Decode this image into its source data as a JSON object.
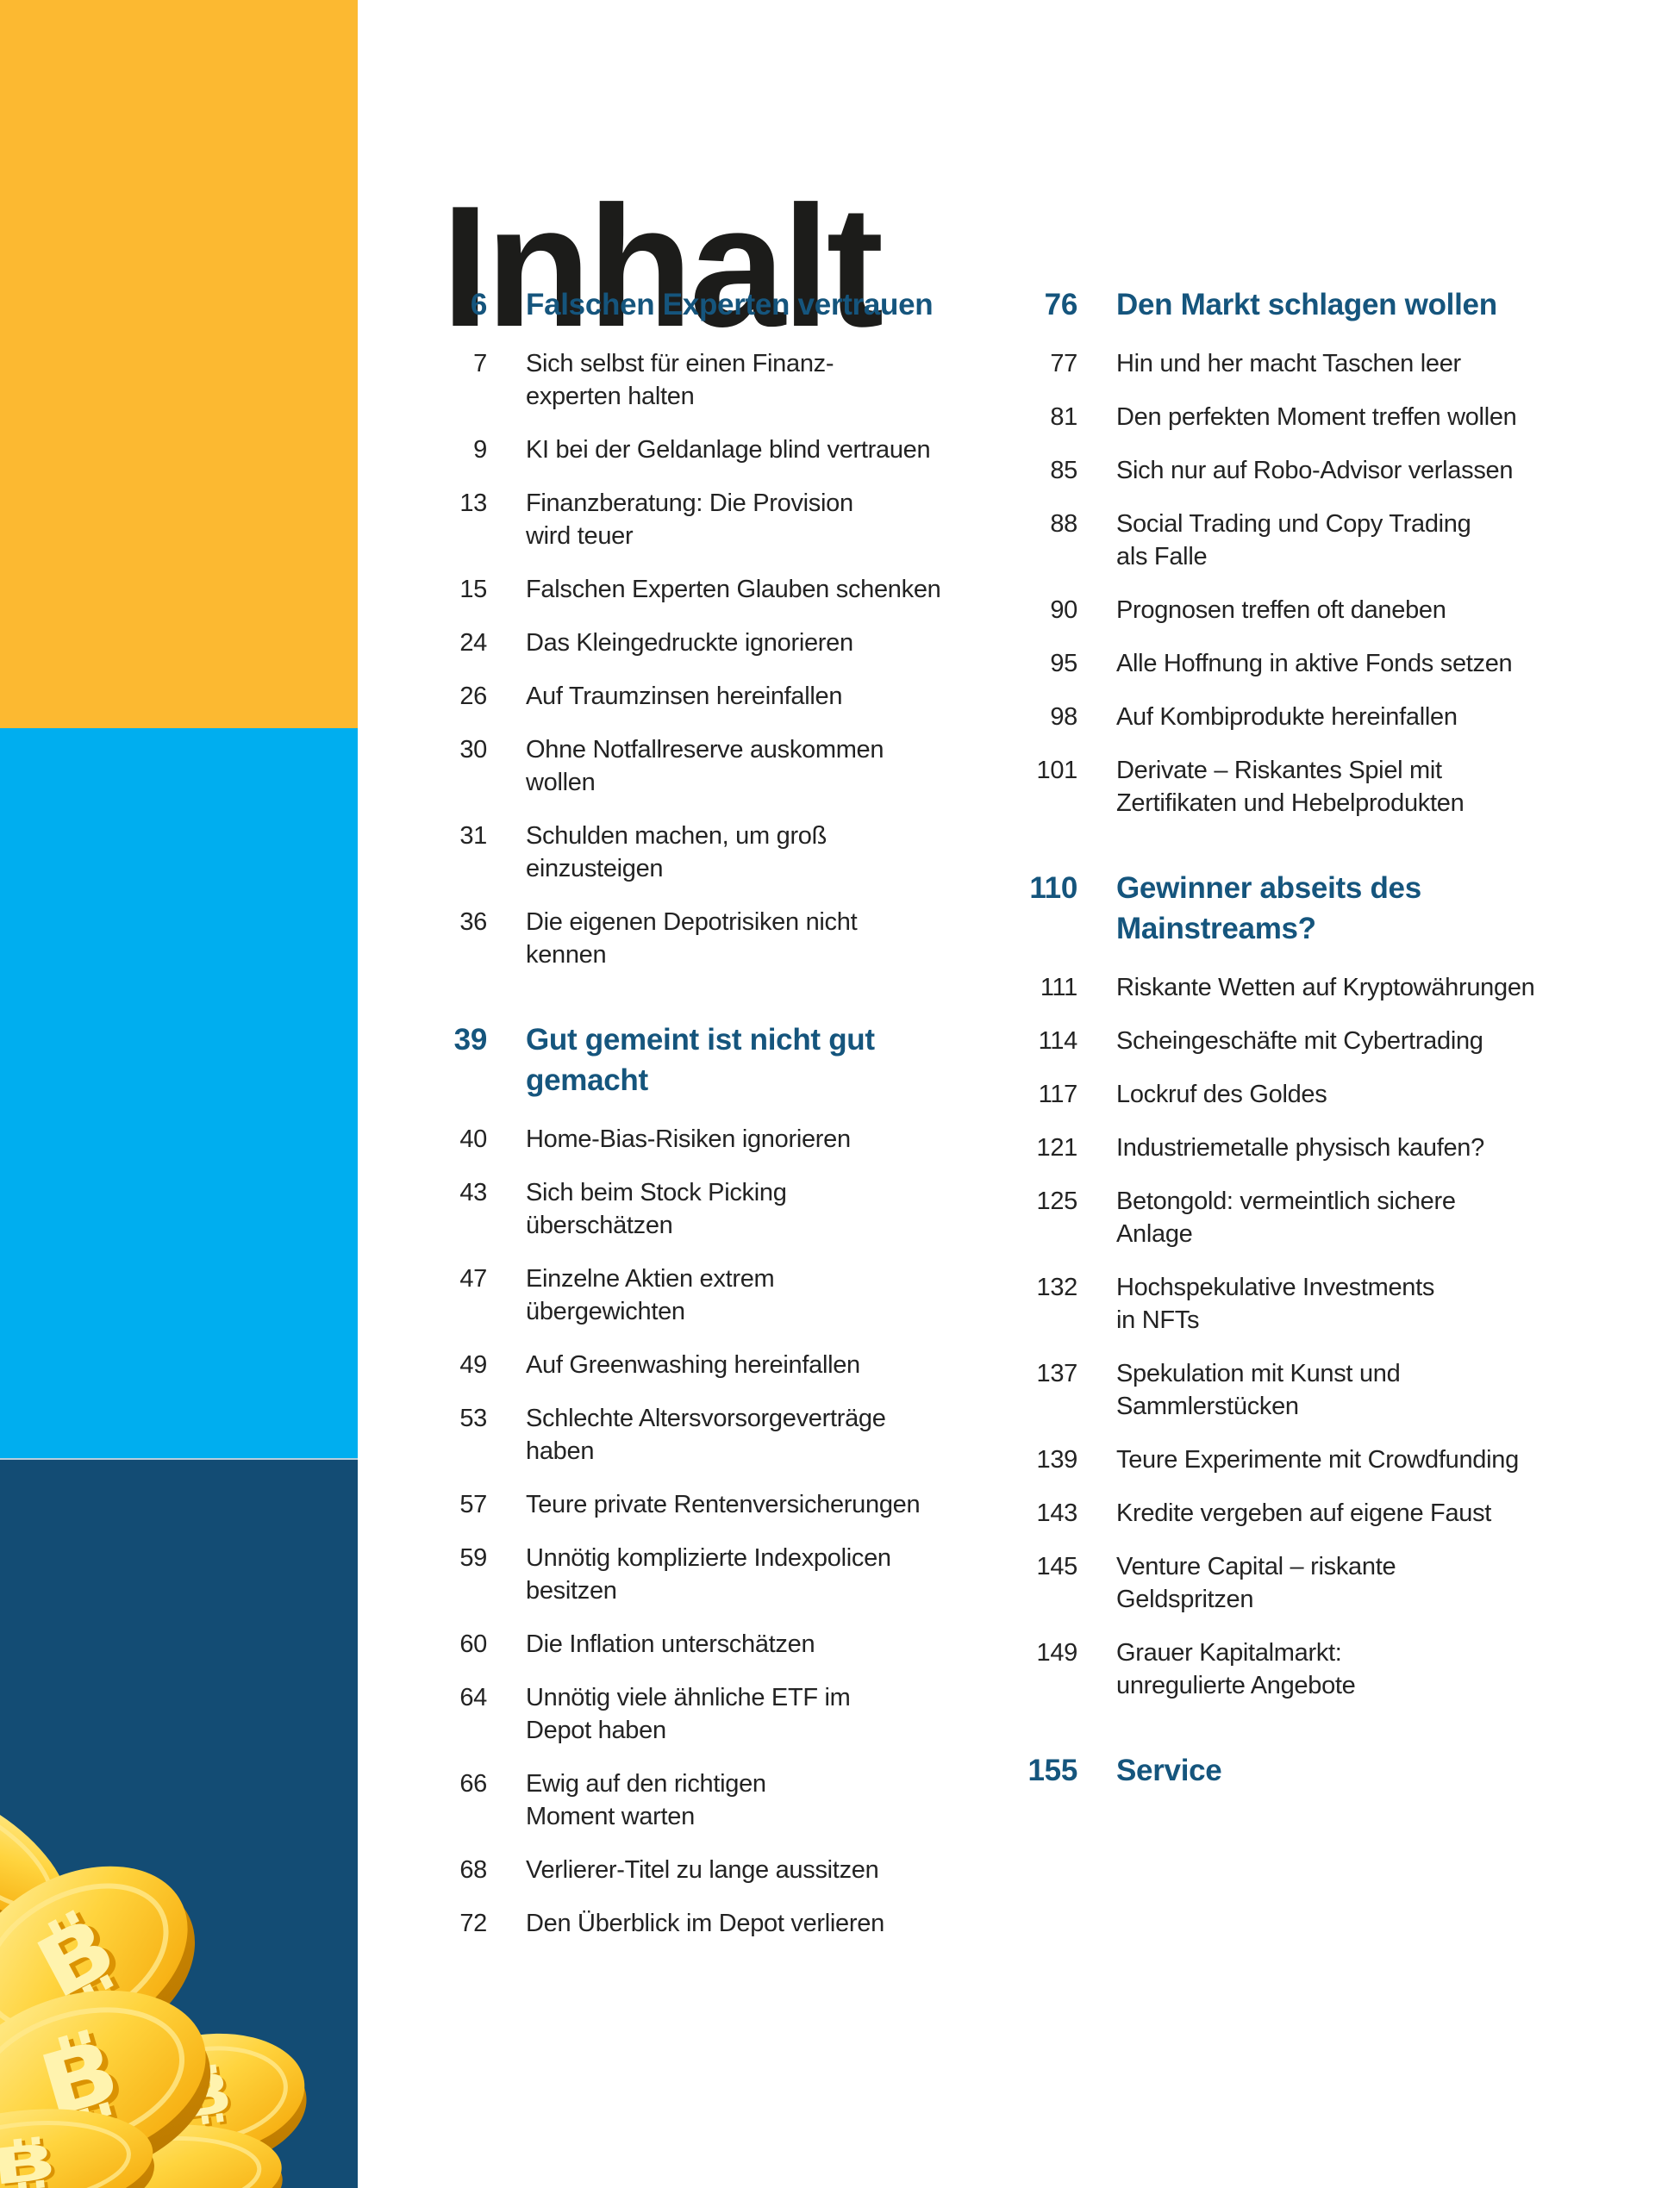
{
  "page": {
    "title": "Inhalt"
  },
  "colors": {
    "sidebar_yellow": "#FCB931",
    "sidebar_cyan": "#00AEEF",
    "sidebar_navy": "#134C74",
    "heading_blue": "#15557D",
    "body_text": "#232323",
    "title_color": "#1C1C1A",
    "coin_gold_light": "#FFF0A0",
    "coin_gold": "#FFD43E",
    "coin_gold_deep": "#F5A90A",
    "coin_rim": "#D78F04",
    "coin_rim_dark": "#BC7A00",
    "coin_symbol": "#FFF3AE",
    "coin_symbol_shadow": "#DB9303"
  },
  "illustration": {
    "name": "bitcoin-coin-pile-illustration",
    "symbol": "B"
  },
  "toc": {
    "left_column": [
      {
        "type": "section",
        "page": "6",
        "label": "Falschen Experten vertrauen"
      },
      {
        "type": "entry",
        "page": "7",
        "label": "Sich selbst für einen Finanz-\nexperten halten"
      },
      {
        "type": "entry",
        "page": "9",
        "label": "KI bei der Geldanlage blind vertrauen"
      },
      {
        "type": "entry",
        "page": "13",
        "label": "Finanzberatung: Die Provision\nwird teuer"
      },
      {
        "type": "entry",
        "page": "15",
        "label": "Falschen Experten Glauben schenken"
      },
      {
        "type": "entry",
        "page": "24",
        "label": "Das Kleingedruckte ignorieren"
      },
      {
        "type": "entry",
        "page": "26",
        "label": "Auf Traumzinsen hereinfallen"
      },
      {
        "type": "entry",
        "page": "30",
        "label": "Ohne Notfallreserve auskommen\nwollen"
      },
      {
        "type": "entry",
        "page": "31",
        "label": "Schulden machen, um groß\neinzusteigen"
      },
      {
        "type": "entry",
        "page": "36",
        "label": "Die eigenen Depotrisiken nicht\nkennen"
      },
      {
        "type": "section",
        "page": "39",
        "label": "Gut gemeint ist nicht gut\ngemacht"
      },
      {
        "type": "entry",
        "page": "40",
        "label": "Home-Bias-Risiken ignorieren"
      },
      {
        "type": "entry",
        "page": "43",
        "label": "Sich beim Stock Picking\nüberschätzen"
      },
      {
        "type": "entry",
        "page": "47",
        "label": "Einzelne Aktien extrem\nübergewichten"
      },
      {
        "type": "entry",
        "page": "49",
        "label": "Auf Greenwashing hereinfallen"
      },
      {
        "type": "entry",
        "page": "53",
        "label": "Schlechte Altersvorsorgeverträge\nhaben"
      },
      {
        "type": "entry",
        "page": "57",
        "label": "Teure private Rentenversicherungen"
      },
      {
        "type": "entry",
        "page": "59",
        "label": "Unnötig komplizierte Indexpolicen\nbesitzen"
      },
      {
        "type": "entry",
        "page": "60",
        "label": "Die Inflation unterschätzen"
      },
      {
        "type": "entry",
        "page": "64",
        "label": "Unnötig viele ähnliche ETF im\nDepot haben"
      },
      {
        "type": "entry",
        "page": "66",
        "label": "Ewig auf den richtigen\nMoment warten"
      },
      {
        "type": "entry",
        "page": "68",
        "label": "Verlierer-Titel zu lange aussitzen"
      },
      {
        "type": "entry",
        "page": "72",
        "label": "Den Überblick im Depot verlieren"
      }
    ],
    "right_column": [
      {
        "type": "section",
        "page": "76",
        "label": "Den Markt schlagen wollen"
      },
      {
        "type": "entry",
        "page": "77",
        "label": "Hin und her macht Taschen leer"
      },
      {
        "type": "entry",
        "page": "81",
        "label": "Den perfekten Moment treffen wollen"
      },
      {
        "type": "entry",
        "page": "85",
        "label": "Sich nur auf Robo-Advisor verlassen"
      },
      {
        "type": "entry",
        "page": "88",
        "label": "Social Trading und Copy Trading\nals Falle"
      },
      {
        "type": "entry",
        "page": "90",
        "label": "Prognosen treffen oft daneben"
      },
      {
        "type": "entry",
        "page": "95",
        "label": "Alle Hoffnung in aktive Fonds setzen"
      },
      {
        "type": "entry",
        "page": "98",
        "label": "Auf Kombiprodukte hereinfallen"
      },
      {
        "type": "entry",
        "page": "101",
        "label": "Derivate – Riskantes Spiel mit\nZertifikaten und Hebelprodukten"
      },
      {
        "type": "section",
        "page": "110",
        "label": "Gewinner abseits des\nMainstreams?"
      },
      {
        "type": "entry",
        "page": "111",
        "label": "Riskante Wetten auf Kryptowährungen"
      },
      {
        "type": "entry",
        "page": "114",
        "label": "Scheingeschäfte mit Cybertrading"
      },
      {
        "type": "entry",
        "page": "117",
        "label": "Lockruf des Goldes"
      },
      {
        "type": "entry",
        "page": "121",
        "label": "Industriemetalle physisch kaufen?"
      },
      {
        "type": "entry",
        "page": "125",
        "label": "Betongold: vermeintlich sichere\nAnlage"
      },
      {
        "type": "entry",
        "page": "132",
        "label": "Hochspekulative Investments\nin NFTs"
      },
      {
        "type": "entry",
        "page": "137",
        "label": "Spekulation mit Kunst und\nSammlerstücken"
      },
      {
        "type": "entry",
        "page": "139",
        "label": "Teure Experimente mit Crowdfunding"
      },
      {
        "type": "entry",
        "page": "143",
        "label": "Kredite vergeben auf eigene Faust"
      },
      {
        "type": "entry",
        "page": "145",
        "label": "Venture Capital – riskante\nGeldspritzen"
      },
      {
        "type": "entry",
        "page": "149",
        "label": "Grauer Kapitalmarkt:\nunregulierte Angebote"
      },
      {
        "type": "section",
        "page": "155",
        "label": "Service"
      }
    ]
  }
}
